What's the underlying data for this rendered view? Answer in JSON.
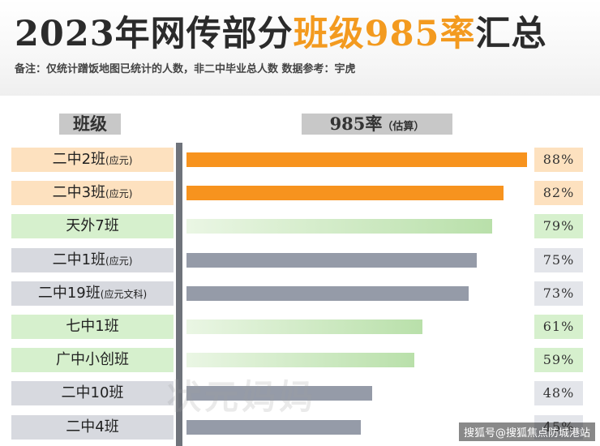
{
  "title": {
    "part1": "2023年网传部分",
    "part2": "班级985率",
    "part3": "汇总"
  },
  "note": "备注：仅统计蹭饭地图已统计的人数，非二中毕业总人数    数据参考：宇虎",
  "colors": {
    "orange": "#f7931e",
    "green": "#b9e0aa",
    "gray": "#959ba8",
    "title_accent": "#f39a1f"
  },
  "watermark": "状元妈妈",
  "source": "搜狐号@搜狐焦点防城港站",
  "chart_data": {
    "type": "bar",
    "orientation": "horizontal",
    "category_header": "班级",
    "value_header": "985率",
    "value_header_sub": "（估算）",
    "xlim": [
      0,
      100
    ],
    "unit": "%",
    "categories": [
      {
        "name": "二中2班",
        "note": "(应元)",
        "color": "orange"
      },
      {
        "name": "二中3班",
        "note": "(应元)",
        "color": "orange"
      },
      {
        "name": "天外7班",
        "note": "",
        "color": "green"
      },
      {
        "name": "二中1班",
        "note": "(应元)",
        "color": "gray"
      },
      {
        "name": "二中19班",
        "note": "(应元文科)",
        "color": "gray"
      },
      {
        "name": "七中1班",
        "note": "",
        "color": "green"
      },
      {
        "name": "广中小创班",
        "note": "",
        "color": "green"
      },
      {
        "name": "二中10班",
        "note": "",
        "color": "gray"
      },
      {
        "name": "二中4班",
        "note": "",
        "color": "gray"
      }
    ],
    "values": [
      88,
      82,
      79,
      75,
      73,
      61,
      59,
      48,
      45
    ],
    "value_labels": [
      "88%",
      "82%",
      "79%",
      "75%",
      "73%",
      "61%",
      "59%",
      "48%",
      "45%"
    ]
  }
}
